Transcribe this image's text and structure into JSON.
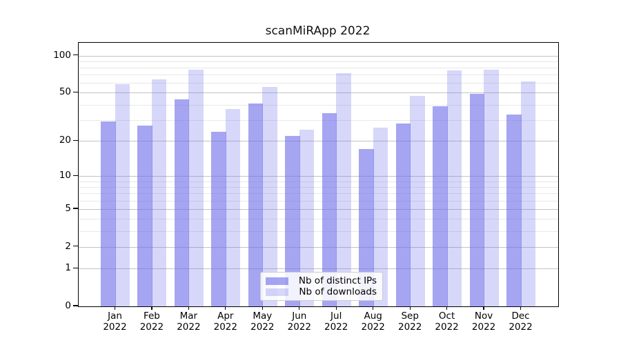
{
  "title": "scanMiRApp 2022",
  "legend": {
    "items": [
      {
        "label": "Nb of distinct IPs"
      },
      {
        "label": "Nb of downloads"
      }
    ]
  },
  "colors": {
    "bar_base": "#6e6eea",
    "ips_fill": "rgba(110,110,234,0.62)",
    "downloads_fill": "rgba(110,110,234,0.28)",
    "major_grid": "#c2c2c2",
    "minor_grid": "#e8e8e8",
    "axis": "#000000",
    "legend_border": "#cccccc"
  },
  "chart_data": {
    "type": "bar",
    "title": "scanMiRApp 2022",
    "categories": [
      "Jan",
      "Feb",
      "Mar",
      "Apr",
      "May",
      "Jun",
      "Jul",
      "Aug",
      "Sep",
      "Oct",
      "Nov",
      "Dec"
    ],
    "year_label": "2022",
    "series": [
      {
        "name": "Nb of distinct IPs",
        "values": [
          29,
          27,
          44,
          24,
          41,
          22,
          34,
          17,
          28,
          39,
          49,
          33
        ]
      },
      {
        "name": "Nb of downloads",
        "values": [
          59,
          64,
          77,
          37,
          56,
          25,
          72,
          26,
          47,
          76,
          77,
          62
        ]
      }
    ],
    "xlabel": "",
    "ylabel": "",
    "yscale": "log1p",
    "yticks": [
      0,
      1,
      2,
      5,
      10,
      20,
      50,
      100
    ],
    "minor_yticks": [
      3,
      4,
      6,
      7,
      8,
      9,
      30,
      40,
      60,
      70,
      80,
      90
    ],
    "ylim": [
      0,
      127
    ],
    "grid": true,
    "legend_position": "lower center"
  }
}
